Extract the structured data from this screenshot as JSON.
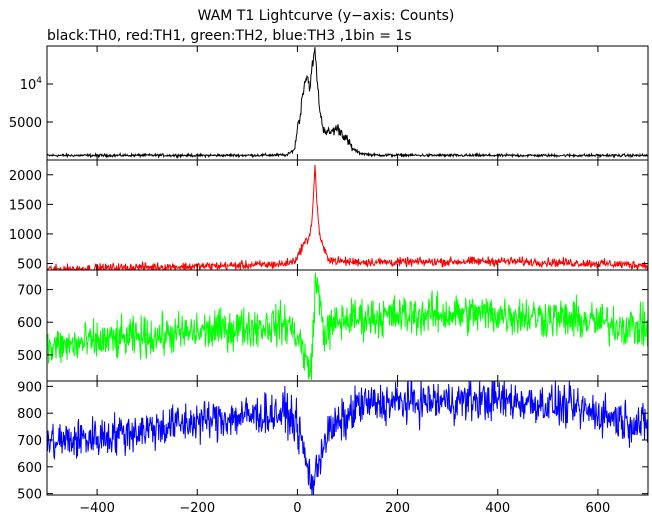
{
  "title": "WAM T1 Lightcurve (y−axis: Counts)",
  "subtitle": "black:TH0, red:TH1, green:TH2, blue:TH3 ,1bin = 1s",
  "chart_data": {
    "type": "line",
    "title": "WAM T1 Lightcurve (y−axis: Counts)",
    "subtitle": "black:TH0, red:TH1, green:TH2, blue:TH3 ,1bin = 1s",
    "xlabel": "",
    "xlim": [
      -500,
      700
    ],
    "x_ticks": [
      -400,
      -200,
      0,
      200,
      400,
      600
    ],
    "x_tick_labels": [
      "−400",
      "−200",
      "0",
      "200",
      "400",
      "600"
    ],
    "panels": [
      {
        "series": "TH0",
        "color": "#000000",
        "ylim": [
          0,
          15000
        ],
        "y_ticks": [
          5000,
          10000
        ],
        "y_tick_labels": [
          "5000",
          "10⁴"
        ],
        "points": [
          [
            -500,
            600
          ],
          [
            -400,
            600
          ],
          [
            -300,
            620
          ],
          [
            -200,
            600
          ],
          [
            -100,
            620
          ],
          [
            -20,
            650
          ],
          [
            -5,
            1500
          ],
          [
            0,
            4500
          ],
          [
            5,
            5500
          ],
          [
            10,
            8500
          ],
          [
            15,
            10500
          ],
          [
            20,
            11000
          ],
          [
            25,
            9500
          ],
          [
            30,
            12500
          ],
          [
            35,
            14500
          ],
          [
            40,
            10000
          ],
          [
            45,
            6500
          ],
          [
            50,
            4500
          ],
          [
            60,
            3500
          ],
          [
            70,
            3800
          ],
          [
            80,
            4200
          ],
          [
            90,
            3500
          ],
          [
            100,
            2500
          ],
          [
            110,
            1500
          ],
          [
            125,
            900
          ],
          [
            150,
            650
          ],
          [
            300,
            600
          ],
          [
            500,
            600
          ],
          [
            700,
            600
          ]
        ]
      },
      {
        "series": "TH1",
        "color": "#ff0000",
        "ylim": [
          390,
          2250
        ],
        "y_ticks": [
          500,
          1000,
          1500,
          2000
        ],
        "y_tick_labels": [
          "500",
          "1000",
          "1500",
          "2000"
        ],
        "points": [
          [
            -500,
            400
          ],
          [
            -400,
            420
          ],
          [
            -300,
            440
          ],
          [
            -200,
            450
          ],
          [
            -100,
            470
          ],
          [
            -30,
            490
          ],
          [
            -10,
            530
          ],
          [
            0,
            600
          ],
          [
            10,
            800
          ],
          [
            20,
            900
          ],
          [
            25,
            1000
          ],
          [
            30,
            1300
          ],
          [
            35,
            2150
          ],
          [
            40,
            1400
          ],
          [
            45,
            950
          ],
          [
            50,
            800
          ],
          [
            60,
            600
          ],
          [
            70,
            560
          ],
          [
            80,
            540
          ],
          [
            100,
            530
          ],
          [
            200,
            520
          ],
          [
            300,
            530
          ],
          [
            400,
            540
          ],
          [
            500,
            520
          ],
          [
            600,
            500
          ],
          [
            700,
            470
          ]
        ]
      },
      {
        "series": "TH2",
        "color": "#00ff00",
        "ylim": [
          420,
          760
        ],
        "y_ticks": [
          500,
          600,
          700
        ],
        "y_tick_labels": [
          "500",
          "600",
          "700"
        ],
        "points": [
          [
            -500,
            520
          ],
          [
            -400,
            540
          ],
          [
            -300,
            555
          ],
          [
            -200,
            570
          ],
          [
            -100,
            585
          ],
          [
            -20,
            595
          ],
          [
            -5,
            570
          ],
          [
            5,
            540
          ],
          [
            15,
            500
          ],
          [
            20,
            460
          ],
          [
            25,
            450
          ],
          [
            30,
            520
          ],
          [
            35,
            700
          ],
          [
            40,
            720
          ],
          [
            45,
            650
          ],
          [
            55,
            560
          ],
          [
            65,
            580
          ],
          [
            80,
            600
          ],
          [
            100,
            610
          ],
          [
            200,
            620
          ],
          [
            300,
            625
          ],
          [
            400,
            625
          ],
          [
            500,
            615
          ],
          [
            600,
            600
          ],
          [
            700,
            580
          ]
        ]
      },
      {
        "series": "TH3",
        "color": "#0000ff",
        "ylim": [
          495,
          920
        ],
        "y_ticks": [
          500,
          600,
          700,
          800,
          900
        ],
        "y_tick_labels": [
          "500",
          "600",
          "700",
          "800",
          "900"
        ],
        "points": [
          [
            -500,
            690
          ],
          [
            -400,
            710
          ],
          [
            -300,
            740
          ],
          [
            -200,
            770
          ],
          [
            -100,
            790
          ],
          [
            -20,
            800
          ],
          [
            -5,
            770
          ],
          [
            5,
            720
          ],
          [
            15,
            640
          ],
          [
            20,
            590
          ],
          [
            25,
            570
          ],
          [
            30,
            540
          ],
          [
            35,
            550
          ],
          [
            40,
            600
          ],
          [
            50,
            680
          ],
          [
            60,
            720
          ],
          [
            80,
            760
          ],
          [
            100,
            780
          ],
          [
            120,
            830
          ],
          [
            200,
            840
          ],
          [
            300,
            845
          ],
          [
            400,
            850
          ],
          [
            500,
            835
          ],
          [
            600,
            800
          ],
          [
            700,
            750
          ]
        ]
      }
    ]
  }
}
